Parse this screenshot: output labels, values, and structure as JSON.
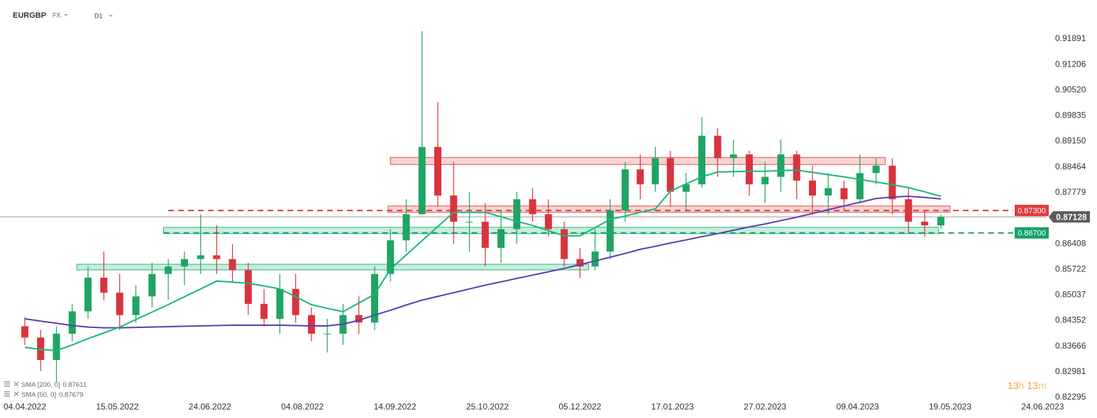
{
  "header": {
    "symbol": "EURGBP",
    "market": "FX",
    "timeframe": "D1"
  },
  "countdown": {
    "hours": 13,
    "h_unit": "h",
    "minutes": 13,
    "m_unit": "m"
  },
  "chart_data": {
    "type": "candlestick",
    "up_color": "#1fa463",
    "down_color": "#d8343d",
    "x": [
      "04.04.2022",
      "11.04.2022",
      "18.04.2022",
      "25.04.2022",
      "02.05.2022",
      "09.05.2022",
      "16.05.2022",
      "23.05.2022",
      "30.05.2022",
      "06.06.2022",
      "13.06.2022",
      "20.06.2022",
      "27.06.2022",
      "04.07.2022",
      "11.07.2022",
      "18.07.2022",
      "25.07.2022",
      "01.08.2022",
      "08.08.2022",
      "15.08.2022",
      "22.08.2022",
      "29.08.2022",
      "05.09.2022",
      "12.09.2022",
      "19.09.2022",
      "26.09.2022",
      "03.10.2022",
      "10.10.2022",
      "17.10.2022",
      "24.10.2022",
      "31.10.2022",
      "07.11.2022",
      "14.11.2022",
      "21.11.2022",
      "28.11.2022",
      "05.12.2022",
      "12.12.2022",
      "19.12.2022",
      "26.12.2022",
      "02.01.2023",
      "09.01.2023",
      "16.01.2023",
      "23.01.2023",
      "30.01.2023",
      "06.02.2023",
      "13.02.2023",
      "20.02.2023",
      "27.02.2023",
      "06.03.2023",
      "13.03.2023",
      "20.03.2023",
      "27.03.2023",
      "03.04.2023",
      "10.04.2023",
      "17.04.2023",
      "24.04.2023",
      "01.05.2023",
      "08.05.2023",
      "15.05.2023"
    ],
    "open": [
      0.842,
      0.839,
      0.833,
      0.84,
      0.846,
      0.855,
      0.851,
      0.845,
      0.85,
      0.856,
      0.858,
      0.86,
      0.861,
      0.86,
      0.857,
      0.848,
      0.844,
      0.852,
      0.845,
      0.84,
      0.84,
      0.845,
      0.843,
      0.856,
      0.865,
      0.872,
      0.89,
      0.877,
      0.87,
      0.87,
      0.863,
      0.868,
      0.876,
      0.872,
      0.868,
      0.86,
      0.858,
      0.862,
      0.873,
      0.884,
      0.88,
      0.887,
      0.878,
      0.88,
      0.893,
      0.887,
      0.888,
      0.88,
      0.882,
      0.888,
      0.881,
      0.877,
      0.879,
      0.876,
      0.883,
      0.885,
      0.876,
      0.87,
      0.869
    ],
    "high": [
      0.8445,
      0.841,
      0.842,
      0.848,
      0.858,
      0.862,
      0.856,
      0.853,
      0.859,
      0.86,
      0.862,
      0.872,
      0.869,
      0.864,
      0.859,
      0.852,
      0.856,
      0.856,
      0.847,
      0.844,
      0.848,
      0.85,
      0.858,
      0.868,
      0.876,
      0.921,
      0.902,
      0.886,
      0.878,
      0.875,
      0.873,
      0.878,
      0.879,
      0.876,
      0.87,
      0.863,
      0.868,
      0.876,
      0.886,
      0.888,
      0.89,
      0.889,
      0.883,
      0.898,
      0.895,
      0.892,
      0.889,
      0.886,
      0.892,
      0.889,
      0.885,
      0.883,
      0.881,
      0.888,
      0.887,
      0.887,
      0.879,
      0.873,
      0.872
    ],
    "low": [
      0.837,
      0.83,
      0.827,
      0.838,
      0.844,
      0.849,
      0.841,
      0.843,
      0.847,
      0.849,
      0.853,
      0.856,
      0.856,
      0.854,
      0.845,
      0.842,
      0.84,
      0.843,
      0.838,
      0.835,
      0.837,
      0.84,
      0.841,
      0.854,
      0.862,
      0.872,
      0.874,
      0.864,
      0.862,
      0.858,
      0.859,
      0.864,
      0.87,
      0.866,
      0.858,
      0.855,
      0.857,
      0.86,
      0.87,
      0.876,
      0.878,
      0.874,
      0.873,
      0.879,
      0.882,
      0.882,
      0.877,
      0.875,
      0.878,
      0.876,
      0.872,
      0.872,
      0.873,
      0.875,
      0.88,
      0.872,
      0.867,
      0.866,
      0.868
    ],
    "close": [
      0.839,
      0.833,
      0.84,
      0.846,
      0.855,
      0.851,
      0.845,
      0.85,
      0.856,
      0.858,
      0.86,
      0.861,
      0.86,
      0.857,
      0.848,
      0.844,
      0.852,
      0.845,
      0.84,
      0.84,
      0.845,
      0.843,
      0.856,
      0.865,
      0.872,
      0.89,
      0.877,
      0.87,
      0.87,
      0.863,
      0.868,
      0.876,
      0.872,
      0.868,
      0.86,
      0.858,
      0.862,
      0.873,
      0.884,
      0.88,
      0.887,
      0.878,
      0.88,
      0.893,
      0.887,
      0.888,
      0.88,
      0.882,
      0.888,
      0.881,
      0.877,
      0.879,
      0.876,
      0.883,
      0.885,
      0.876,
      0.87,
      0.869,
      0.8713
    ],
    "series": [
      {
        "name": "SMA [200, 0]",
        "color": "#5b3fb0",
        "last_value": 0.87611,
        "values": [
          0.844,
          0.8434,
          0.8428,
          0.8422,
          0.8418,
          0.8416,
          0.8416,
          0.8417,
          0.8418,
          0.8419,
          0.842,
          0.8421,
          0.8422,
          0.8423,
          0.8423,
          0.8423,
          0.8423,
          0.8422,
          0.8421,
          0.8421,
          0.8426,
          0.8436,
          0.845,
          0.8463,
          0.8477,
          0.849,
          0.85,
          0.851,
          0.852,
          0.853,
          0.8539,
          0.8548,
          0.8557,
          0.8566,
          0.8575,
          0.8585,
          0.8595,
          0.8605,
          0.8615,
          0.8626,
          0.8634,
          0.8643,
          0.8651,
          0.866,
          0.8668,
          0.8677,
          0.8686,
          0.8694,
          0.8703,
          0.8712,
          0.8722,
          0.8732,
          0.8742,
          0.8752,
          0.8762,
          0.8766,
          0.8768,
          0.8765,
          0.87611
        ]
      },
      {
        "name": "SMA [50, 0]",
        "color": "#16b87a",
        "last_value": 0.87679,
        "values": [
          0.8364,
          0.8358,
          0.8355,
          0.837,
          0.8387,
          0.8402,
          0.8418,
          0.8438,
          0.8458,
          0.8478,
          0.8499,
          0.852,
          0.8541,
          0.8538,
          0.8535,
          0.8528,
          0.852,
          0.8499,
          0.8478,
          0.8468,
          0.8459,
          0.8482,
          0.8506,
          0.8573,
          0.8611,
          0.8649,
          0.8687,
          0.8725,
          0.8725,
          0.8725,
          0.8713,
          0.8701,
          0.869,
          0.8676,
          0.8662,
          0.8662,
          0.8684,
          0.8706,
          0.8715,
          0.8725,
          0.8734,
          0.8782,
          0.8801,
          0.882,
          0.8833,
          0.8834,
          0.8835,
          0.8835,
          0.8837,
          0.8838,
          0.8832,
          0.8826,
          0.882,
          0.8813,
          0.8806,
          0.8799,
          0.8791,
          0.878,
          0.87679
        ]
      }
    ],
    "zones": [
      {
        "low": 0.8853,
        "high": 0.8872,
        "from": "12.09.2022",
        "to": "21.04.2023",
        "color": "#e05050"
      },
      {
        "low": 0.8725,
        "high": 0.8742,
        "from": "11.09.2022",
        "to": "19.05.2023",
        "color": "#e05050"
      },
      {
        "low": 0.8668,
        "high": 0.8685,
        "from": "04.06.2022",
        "to": "14.05.2023",
        "color": "#2cb57a"
      },
      {
        "low": 0.8571,
        "high": 0.8586,
        "from": "27.04.2022",
        "to": "09.12.2022",
        "color": "#2cb57a"
      }
    ],
    "hlines": [
      {
        "value": 0.873,
        "label": "0.87300",
        "from": "06.06.2022",
        "color": "#e03c3c"
      },
      {
        "value": 0.867,
        "label": "0.86700",
        "from": "04.06.2022",
        "color": "#13a36a"
      }
    ],
    "last_price": {
      "value": 0.87128,
      "label": "0.87128",
      "color": "#5c5c5c"
    },
    "xlim": [
      "24.03.2022",
      "26.06.2023"
    ],
    "xticks": [
      "04.04.2022",
      "15.05.2022",
      "24.06.2022",
      "04.08.2022",
      "14.09.2022",
      "25.10.2022",
      "05.12.2022",
      "17.01.2023",
      "27.02.2023",
      "09.04.2023",
      "19.05.2023",
      "24.06.2023"
    ],
    "ylim": [
      0.82162,
      0.92934
    ],
    "yticks": [
      0.91891,
      0.91206,
      {
        "value": 0.9052,
        "label": "0.90520"
      },
      0.89835,
      {
        "value": 0.8915,
        "label": "0.89150"
      },
      0.88464,
      0.87779,
      0.86408,
      0.85722,
      0.85037,
      0.84352,
      0.83666,
      0.82981,
      0.82295
    ],
    "grid": false
  }
}
